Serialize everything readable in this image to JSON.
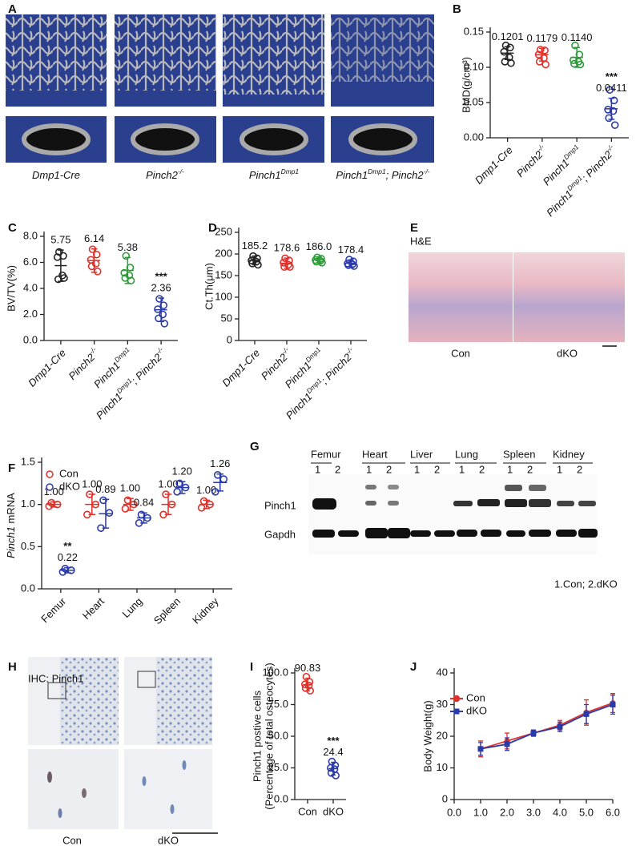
{
  "figure": {
    "A": {
      "letter": "A",
      "labels": [
        [
          "Dmp1-Cre"
        ],
        [
          "Pinch2",
          "-/-"
        ],
        [
          "Pinch1",
          "Dmp1"
        ],
        [
          "Pinch1",
          "Dmp1",
          "; Pinch2",
          "-/-"
        ]
      ]
    },
    "E": {
      "letter": "E",
      "stain": "H&E",
      "labels": [
        "Con",
        "dKO"
      ]
    },
    "G": {
      "letter": "G",
      "tissues": [
        "Femur",
        "Heart",
        "Liver",
        "Lung",
        "Spleen",
        "Kidney"
      ],
      "lanes": [
        "1",
        "2"
      ],
      "rows": [
        "Pinch1",
        "Gapdh"
      ],
      "note": "1.Con; 2.dKO"
    },
    "H": {
      "letter": "H",
      "stain": "IHC: Pinch1",
      "labels": [
        "Con",
        "dKO"
      ]
    }
  },
  "chart_data": [
    {
      "panel": "B",
      "type": "dotplot",
      "ylabel": "BMD(g/cm³)",
      "ylim": [
        0,
        0.15
      ],
      "yticks": [
        {
          "value": 0,
          "label": "0.00"
        },
        0.05,
        {
          "value": 0.1,
          "label": "0.10"
        },
        {
          "value": 0.15,
          "label": "0.15"
        }
      ],
      "categories": [
        [
          "Dmp1-Cre"
        ],
        [
          "Pinch2",
          "-/-"
        ],
        [
          "Pinch1",
          "Dmp1"
        ],
        [
          "Pinch1",
          "Dmp1",
          "; Pinch2",
          "-/-"
        ]
      ],
      "series": [
        {
          "colors": [
            "#222222",
            "#e0302a",
            "#2e9a3a",
            "#2a3aa8"
          ],
          "points": [
            [
              0.131,
              0.128,
              0.122,
              0.114,
              0.108,
              0.106
            ],
            [
              0.125,
              0.124,
              0.118,
              0.113,
              0.108,
              0.104
            ],
            [
              0.131,
              0.118,
              0.11,
              0.108,
              0.105,
              0.104
            ],
            [
              0.068,
              0.053,
              0.04,
              0.038,
              0.028,
              0.018
            ]
          ],
          "means": [
            0.1201,
            0.1179,
            0.114,
            0.0411
          ],
          "mean_labels": [
            "0.1201",
            "0.1179",
            "0.1140",
            "0.0411"
          ],
          "sd": [
            0.009,
            0.009,
            0.014,
            0.015
          ],
          "significance": [
            null,
            null,
            null,
            "***"
          ]
        }
      ]
    },
    {
      "panel": "C",
      "type": "dotplot",
      "ylabel": "BV/TV(%)",
      "ylim": [
        0,
        8
      ],
      "yticks": [
        {
          "value": 0,
          "label": "0.0"
        },
        {
          "value": 2,
          "label": "2.0"
        },
        {
          "value": 4,
          "label": "4.0"
        },
        {
          "value": 6,
          "label": "6.0"
        },
        {
          "value": 8,
          "label": "8.0"
        }
      ],
      "categories": [
        [
          "Dmp1-Cre"
        ],
        [
          "Pinch2",
          "-/-"
        ],
        [
          "Pinch1",
          "Dmp1"
        ],
        [
          "Pinch1",
          "Dmp1",
          "; Pinch2",
          "-/-"
        ]
      ],
      "series": [
        {
          "colors": [
            "#222222",
            "#e0302a",
            "#2e9a3a",
            "#2a3aa8"
          ],
          "points": [
            [
              6.8,
              6.5,
              6.4,
              5.0,
              4.7,
              4.8
            ],
            [
              7.0,
              6.6,
              6.2,
              5.9,
              5.7,
              5.3
            ],
            [
              6.5,
              5.6,
              5.2,
              5.0,
              4.8,
              4.6
            ],
            [
              3.2,
              2.7,
              2.4,
              2.0,
              1.7,
              1.3
            ]
          ],
          "means": [
            5.75,
            6.14,
            5.38,
            2.36
          ],
          "sd": [
            1.2,
            0.9,
            1.0,
            0.9
          ],
          "significance": [
            null,
            null,
            null,
            "***"
          ]
        }
      ]
    },
    {
      "panel": "D",
      "type": "dotplot",
      "ylabel": "Ct.Th(μm)",
      "ylim": [
        0,
        250
      ],
      "yticks": [
        0,
        50,
        100,
        150,
        200,
        250
      ],
      "categories": [
        [
          "Dmp1-Cre"
        ],
        [
          "Pinch2",
          "-/-"
        ],
        [
          "Pinch1",
          "Dmp1"
        ],
        [
          "Pinch1",
          "Dmp1",
          "; Pinch2",
          "-/-"
        ]
      ],
      "series": [
        {
          "colors": [
            "#222222",
            "#e0302a",
            "#2e9a3a",
            "#2a3aa8"
          ],
          "points": [
            [
              195,
              190,
              185,
              182,
              178,
              175
            ],
            [
              190,
              185,
              180,
              175,
              170,
              170
            ],
            [
              192,
              189,
              186,
              184,
              182,
              180
            ],
            [
              187,
              183,
              178,
              176,
              174,
              172
            ]
          ],
          "means": [
            185.2,
            178.6,
            186.0,
            178.4
          ],
          "mean_labels": [
            "185.2",
            "178.6",
            "186.0",
            "178.4"
          ],
          "sd": [
            10,
            12,
            7,
            8
          ]
        }
      ]
    },
    {
      "panel": "F",
      "type": "dotplot",
      "ylabel": [
        "Pinch1",
        " mRNA"
      ],
      "ylim": [
        0,
        1.5
      ],
      "yticks": [
        {
          "value": 0,
          "label": "0.0"
        },
        0.5,
        {
          "value": 1,
          "label": "1.0"
        },
        1.5
      ],
      "categories": [
        "Femur",
        "Heart",
        "Lung",
        "Spleen",
        "Kidney"
      ],
      "series": [
        {
          "name": "Con",
          "color": "#e0302a",
          "points": [
            [
              1.02,
              1.0,
              0.98
            ],
            [
              1.12,
              1.0,
              0.88
            ],
            [
              1.05,
              1.0,
              0.95
            ],
            [
              1.12,
              1.0,
              0.88
            ],
            [
              1.04,
              1.0,
              0.96
            ]
          ],
          "means": [
            1,
            1,
            1,
            1,
            1
          ],
          "mean_labels": [
            "1.00",
            "1.00",
            "1.00",
            "1.00",
            "1.00"
          ],
          "sd": [
            0.03,
            0.12,
            0.07,
            0.12,
            0.05
          ]
        },
        {
          "name": "dKO",
          "color": "#2a3aa8",
          "points": [
            [
              0.24,
              0.22,
              0.2
            ],
            [
              1.05,
              0.9,
              0.72
            ],
            [
              0.88,
              0.84,
              0.78
            ],
            [
              1.25,
              1.2,
              1.15
            ],
            [
              1.35,
              1.3,
              1.15
            ]
          ],
          "means": [
            0.22,
            0.89,
            0.84,
            1.2,
            1.26
          ],
          "mean_labels": [
            "0.22",
            "0.89",
            "0.84",
            "1.20",
            "1.26"
          ],
          "sd": [
            0.03,
            0.17,
            0.06,
            0.07,
            0.1
          ],
          "significance": [
            "**",
            null,
            null,
            null,
            null
          ]
        }
      ]
    },
    {
      "panel": "I",
      "type": "dotplot",
      "ylabel_lines": [
        "Pinch1 postive cells",
        "(Percentage of total osteocytes)"
      ],
      "ylim": [
        0,
        100
      ],
      "yticks": [
        {
          "value": 0,
          "label": "0.0"
        },
        {
          "value": 25,
          "label": "25.0"
        },
        {
          "value": 50,
          "label": "50.0"
        },
        {
          "value": 75,
          "label": "75.0"
        },
        {
          "value": 100,
          "label": "100.0"
        }
      ],
      "categories": [
        "Con",
        "dKO"
      ],
      "series": [
        {
          "colors": [
            "#e0302a",
            "#2a3aa8"
          ],
          "points": [
            [
              97,
              93,
              91,
              90,
              88,
              86
            ],
            [
              30,
              27,
              25,
              24,
              21,
              19
            ]
          ],
          "means": [
            90.83,
            24.4
          ],
          "sd": [
            5,
            5
          ],
          "significance": [
            null,
            "***"
          ]
        }
      ]
    },
    {
      "panel": "J",
      "type": "line",
      "ylabel": "Body Weight(g)",
      "x": [
        1,
        2,
        3,
        4,
        5,
        6
      ],
      "xlim": [
        0,
        6
      ],
      "xticks": [
        {
          "value": 0,
          "label": "0.0"
        },
        {
          "value": 1,
          "label": "1.0"
        },
        {
          "value": 2,
          "label": "2.0"
        },
        {
          "value": 3,
          "label": "3.0"
        },
        {
          "value": 4,
          "label": "4.0"
        },
        {
          "value": 5,
          "label": "5.0"
        },
        {
          "value": 6,
          "label": "6.0"
        }
      ],
      "ylim": [
        0,
        40
      ],
      "yticks": [
        0,
        10,
        20,
        30,
        40
      ],
      "series": [
        {
          "name": "Con",
          "color": "#e0302a",
          "marker": "circle",
          "values": [
            16,
            18.5,
            21,
            23.5,
            27.5,
            30.5
          ],
          "errors": [
            2.5,
            2.5,
            1,
            1.5,
            4,
            3
          ]
        },
        {
          "name": "dKO",
          "color": "#2a3aa8",
          "marker": "square",
          "values": [
            16,
            17.5,
            21,
            23,
            27,
            30
          ],
          "errors": [
            2,
            2,
            1,
            1.5,
            3,
            3
          ]
        }
      ]
    }
  ]
}
